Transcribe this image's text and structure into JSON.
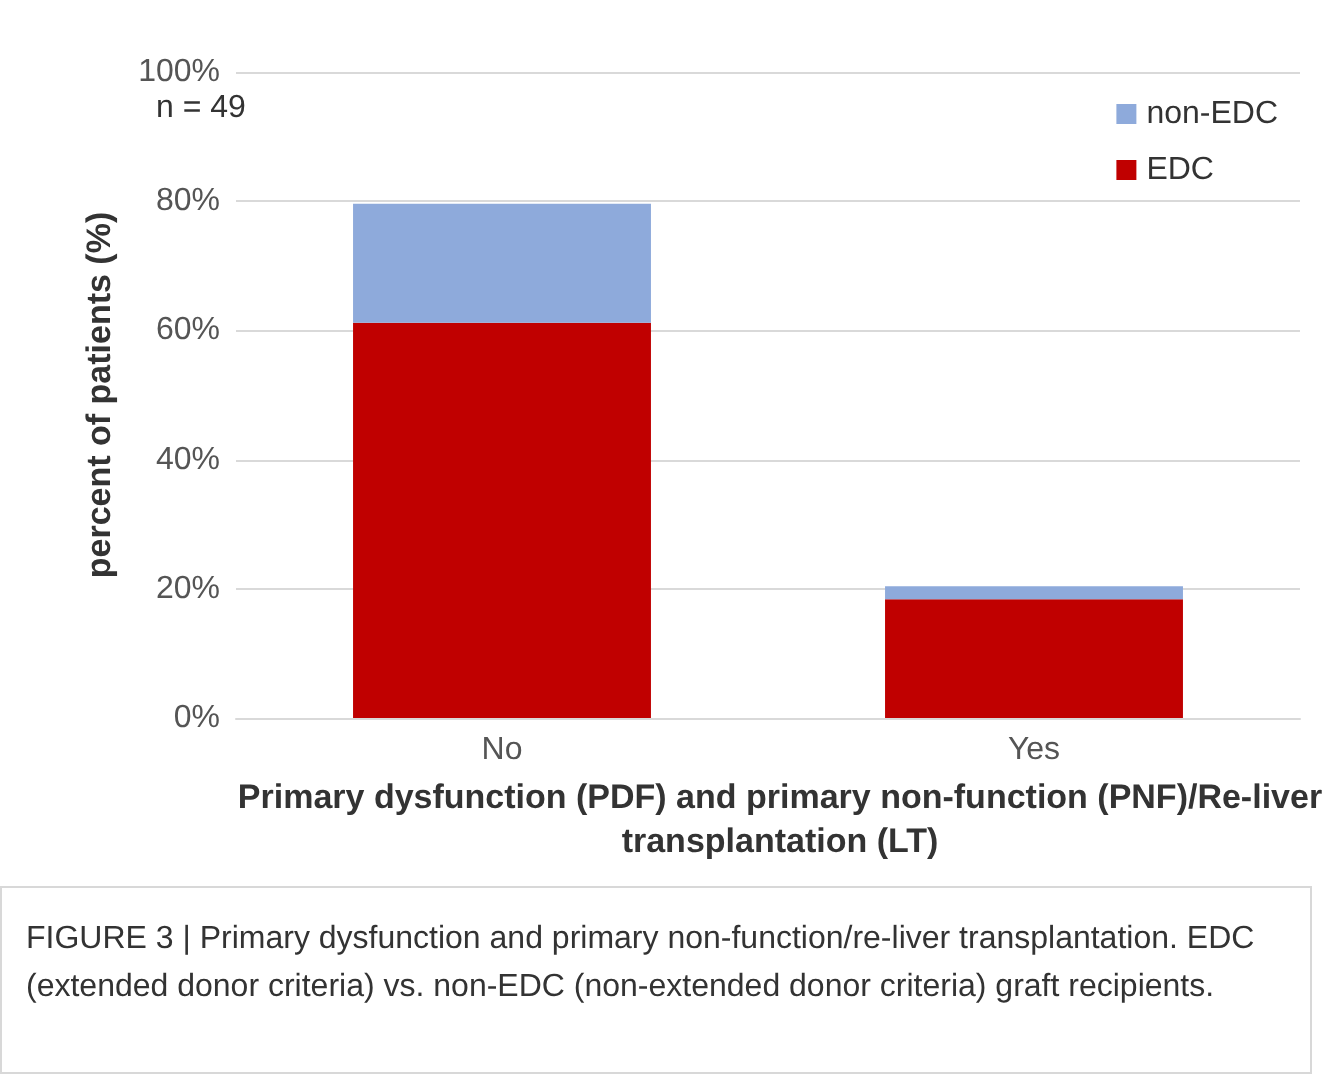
{
  "chart_data": {
    "type": "bar",
    "stacked": true,
    "xlabel": "Primary dysfunction (PDF) and primary non-function (PNF)/Re-liver transplantation (LT)",
    "ylabel": "percent of patients (%)",
    "categories": [
      "No",
      "Yes"
    ],
    "series": [
      {
        "name": "EDC",
        "color": "#c00000",
        "values": [
          61.2,
          18.4
        ]
      },
      {
        "name": "non-EDC",
        "color": "#8eaadb",
        "values": [
          18.4,
          2.0
        ]
      }
    ],
    "ylim": [
      0,
      100
    ],
    "yticks": [
      {
        "value": 0,
        "label": "0%"
      },
      {
        "value": 20,
        "label": "20%"
      },
      {
        "value": 40,
        "label": "40%"
      },
      {
        "value": 60,
        "label": "60%"
      },
      {
        "value": 80,
        "label": "80%"
      },
      {
        "value": 100,
        "label": "100%"
      }
    ],
    "grid": "y",
    "legend": "top right",
    "annotations": [
      "n = 49",
      "FIGURE 3 | Primary dysfunction and primary non-function/re-liver transplantation. EDC (extended donor criteria) vs. non-EDC (non-extended donor criteria) graft recipients."
    ]
  }
}
